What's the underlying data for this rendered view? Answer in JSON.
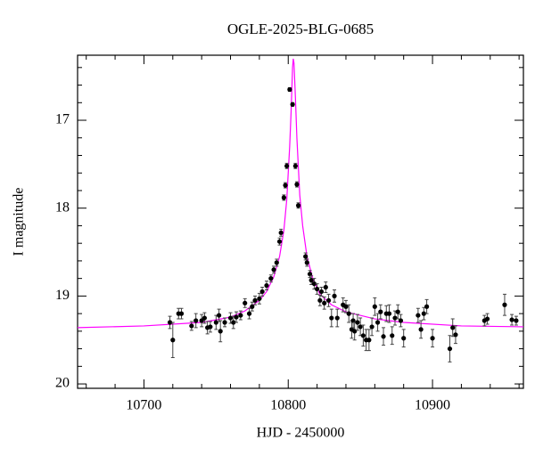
{
  "chart_data": {
    "type": "scatter",
    "title": "OGLE-2025-BLG-0685",
    "x_label": "HJD - 2450000",
    "y_label": "I magnitude",
    "xlim": [
      10654,
      10963
    ],
    "ylim": [
      16.26,
      20.05
    ],
    "invert_y": true,
    "xticks": [
      10700,
      10800,
      10900
    ],
    "yticks": [
      17,
      18,
      19,
      20
    ],
    "xminor_ticks": [
      10660,
      10680,
      10720,
      10740,
      10760,
      10780,
      10820,
      10840,
      10860,
      10880,
      10920,
      10940,
      10960
    ],
    "yminor_ticks": [
      16.4,
      16.6,
      16.8,
      17.2,
      17.4,
      17.6,
      17.8,
      18.2,
      18.4,
      18.6,
      18.8,
      19.2,
      19.4,
      19.6,
      19.8
    ],
    "points": {
      "color": "#000000",
      "x": [
        10718,
        10720,
        10724,
        10726,
        10733,
        10736,
        10740,
        10742,
        10744,
        10746,
        10750,
        10752,
        10753,
        10756,
        10760,
        10762,
        10764,
        10767,
        10770,
        10773,
        10775,
        10777,
        10780,
        10782,
        10785,
        10788,
        10790,
        10792,
        10794,
        10795,
        10797,
        10798,
        10799,
        10801,
        10803,
        10805,
        10806,
        10807,
        10812,
        10813,
        10815,
        10816,
        10818,
        10820,
        10822,
        10823,
        10825,
        10826,
        10828,
        10830,
        10832,
        10834,
        10838,
        10840,
        10842,
        10844,
        10845,
        10846,
        10848,
        10850,
        10852,
        10854,
        10856,
        10858,
        10860,
        10862,
        10864,
        10866,
        10868,
        10870,
        10872,
        10874,
        10876,
        10878,
        10880,
        10890,
        10892,
        10894,
        10896,
        10900,
        10912,
        10914,
        10916,
        10936,
        10938,
        10950,
        10955,
        10958
      ],
      "values": [
        19.3,
        19.5,
        19.2,
        19.2,
        19.34,
        19.28,
        19.28,
        19.25,
        19.36,
        19.35,
        19.3,
        19.22,
        19.4,
        19.3,
        19.25,
        19.3,
        19.24,
        19.22,
        19.08,
        19.2,
        19.12,
        19.05,
        19.03,
        18.95,
        18.88,
        18.8,
        18.7,
        18.62,
        18.38,
        18.28,
        17.88,
        17.74,
        17.52,
        16.65,
        16.82,
        17.52,
        17.73,
        17.97,
        18.55,
        18.62,
        18.75,
        18.82,
        18.86,
        18.92,
        19.05,
        18.95,
        19.08,
        18.9,
        19.05,
        19.25,
        19.0,
        19.25,
        19.1,
        19.12,
        19.2,
        19.38,
        19.28,
        19.4,
        19.3,
        19.35,
        19.45,
        19.5,
        19.5,
        19.35,
        19.12,
        19.3,
        19.18,
        19.46,
        19.2,
        19.2,
        19.45,
        19.25,
        19.18,
        19.28,
        19.48,
        19.22,
        19.38,
        19.2,
        19.12,
        19.48,
        19.6,
        19.36,
        19.44,
        19.28,
        19.26,
        19.1,
        19.27,
        19.28
      ],
      "errors": [
        0.07,
        0.2,
        0.06,
        0.06,
        0.05,
        0.08,
        0.07,
        0.06,
        0.07,
        0.06,
        0.08,
        0.07,
        0.12,
        0.05,
        0.06,
        0.07,
        0.06,
        0.05,
        0.05,
        0.06,
        0.05,
        0.05,
        0.06,
        0.05,
        0.05,
        0.04,
        0.04,
        0.04,
        0.04,
        0.04,
        0.03,
        0.03,
        0.03,
        0.02,
        0.02,
        0.03,
        0.03,
        0.03,
        0.04,
        0.04,
        0.04,
        0.05,
        0.06,
        0.06,
        0.06,
        0.05,
        0.07,
        0.06,
        0.07,
        0.1,
        0.07,
        0.1,
        0.08,
        0.07,
        0.1,
        0.1,
        0.08,
        0.1,
        0.09,
        0.1,
        0.12,
        0.12,
        0.12,
        0.1,
        0.1,
        0.1,
        0.08,
        0.1,
        0.09,
        0.1,
        0.1,
        0.08,
        0.08,
        0.07,
        0.1,
        0.08,
        0.1,
        0.07,
        0.08,
        0.1,
        0.15,
        0.1,
        0.1,
        0.06,
        0.06,
        0.12,
        0.06,
        0.05
      ]
    },
    "model": {
      "color": "#ff00ff",
      "x": [
        10654,
        10700,
        10740,
        10760,
        10770,
        10780,
        10785,
        10790,
        10794,
        10797,
        10799,
        10801,
        10802,
        10803,
        10803.5,
        10804,
        10805,
        10806,
        10808,
        10810,
        10813,
        10817,
        10822,
        10830,
        10840,
        10860,
        10880,
        10920,
        10963
      ],
      "values": [
        19.36,
        19.34,
        19.3,
        19.24,
        19.17,
        19.05,
        18.95,
        18.78,
        18.55,
        18.25,
        17.9,
        17.3,
        16.9,
        16.4,
        16.3,
        16.35,
        16.75,
        17.2,
        17.85,
        18.2,
        18.55,
        18.8,
        18.98,
        19.1,
        19.18,
        19.26,
        19.3,
        19.34,
        19.35
      ]
    }
  }
}
